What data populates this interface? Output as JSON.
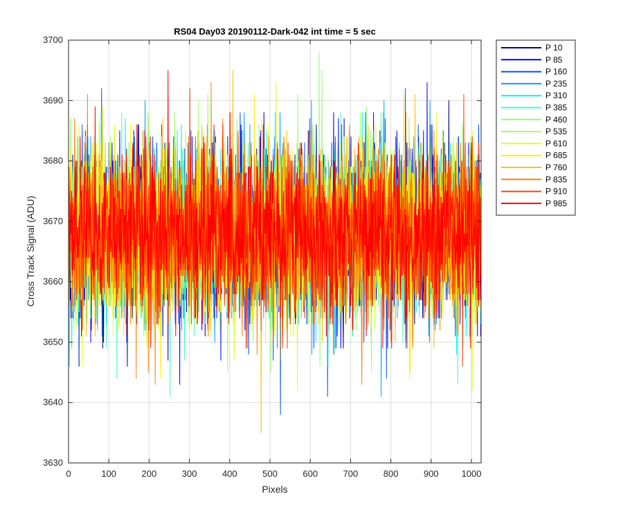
{
  "chart_data": {
    "type": "line",
    "title": "RS04 Day03 20190112-Dark-042 int time = 5 sec",
    "xlabel": "Pixels",
    "ylabel": "Cross Track Signal (ADU)",
    "xlim": [
      0,
      1024
    ],
    "ylim": [
      3630,
      3700
    ],
    "xticks": [
      0,
      100,
      200,
      300,
      400,
      500,
      600,
      700,
      800,
      900,
      1000
    ],
    "yticks": [
      3630,
      3640,
      3650,
      3660,
      3670,
      3680,
      3690,
      3700
    ],
    "grid": true,
    "legend_position": "outside-top-right",
    "noise": {
      "mean": 3668,
      "typical_range": [
        3655,
        3682
      ]
    },
    "series": [
      {
        "name": "P 10",
        "color": "#00008f",
        "max": 3690,
        "min": 3646
      },
      {
        "name": "P 85",
        "color": "#0000ff",
        "max": 3693,
        "min": 3643
      },
      {
        "name": "P 160",
        "color": "#004fff",
        "max": 3692,
        "min": 3638
      },
      {
        "name": "P 235",
        "color": "#009fff",
        "max": 3690,
        "min": 3641
      },
      {
        "name": "P 310",
        "color": "#00efff",
        "max": 3688,
        "min": 3646
      },
      {
        "name": "P 385",
        "color": "#3fffbf",
        "max": 3688,
        "min": 3641
      },
      {
        "name": "P 460",
        "color": "#8fff6f",
        "max": 3698,
        "min": 3645
      },
      {
        "name": "P 535",
        "color": "#9fff5f",
        "max": 3691,
        "min": 3645
      },
      {
        "name": "P 610",
        "color": "#dfff1f",
        "max": 3693,
        "min": 3642
      },
      {
        "name": "P 685",
        "color": "#ffef00",
        "max": 3691,
        "min": 3644
      },
      {
        "name": "P 760",
        "color": "#ffbf00",
        "max": 3695,
        "min": 3635
      },
      {
        "name": "P 835",
        "color": "#ff7f00",
        "max": 3693,
        "min": 3643
      },
      {
        "name": "P 910",
        "color": "#ff3f00",
        "max": 3692,
        "min": 3646
      },
      {
        "name": "P 985",
        "color": "#ff0000",
        "max": 3695,
        "min": 3649
      }
    ]
  }
}
